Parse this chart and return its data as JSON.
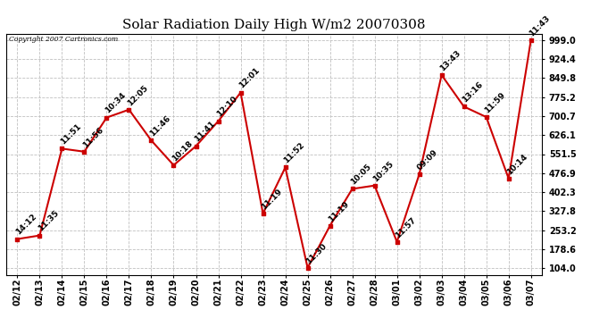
{
  "title": "Solar Radiation Daily High W/m2 20070308",
  "copyright": "Copyright 2007 Cartronics.com",
  "dates": [
    "02/12",
    "02/13",
    "02/14",
    "02/15",
    "02/16",
    "02/17",
    "02/18",
    "02/19",
    "02/20",
    "02/21",
    "02/22",
    "02/23",
    "02/24",
    "02/25",
    "02/26",
    "02/27",
    "02/28",
    "03/01",
    "03/02",
    "03/03",
    "03/04",
    "03/05",
    "03/06",
    "03/07"
  ],
  "values": [
    218,
    232,
    573,
    561,
    695,
    726,
    605,
    508,
    583,
    681,
    793,
    318,
    499,
    105,
    270,
    415,
    428,
    207,
    472,
    862,
    738,
    697,
    456,
    999
  ],
  "labels": [
    "14:12",
    "11:35",
    "11:51",
    "11:56",
    "10:34",
    "12:05",
    "11:46",
    "10:18",
    "11:41",
    "12:10",
    "12:01",
    "11:19",
    "11:52",
    "11:30",
    "11:19",
    "10:05",
    "10:35",
    "11:57",
    "09:09",
    "13:43",
    "13:16",
    "11:59",
    "10:14",
    "11:43"
  ],
  "line_color": "#cc0000",
  "marker_color": "#cc0000",
  "bg_color": "#ffffff",
  "grid_color": "#c0c0c0",
  "title_fontsize": 11,
  "label_fontsize": 6.5,
  "tick_fontsize": 7,
  "yticks": [
    104.0,
    178.6,
    253.2,
    327.8,
    402.3,
    476.9,
    551.5,
    626.1,
    700.7,
    775.2,
    849.8,
    924.4,
    999.0
  ],
  "ylim": [
    78,
    1025
  ],
  "xlim": [
    -0.5,
    23.5
  ]
}
